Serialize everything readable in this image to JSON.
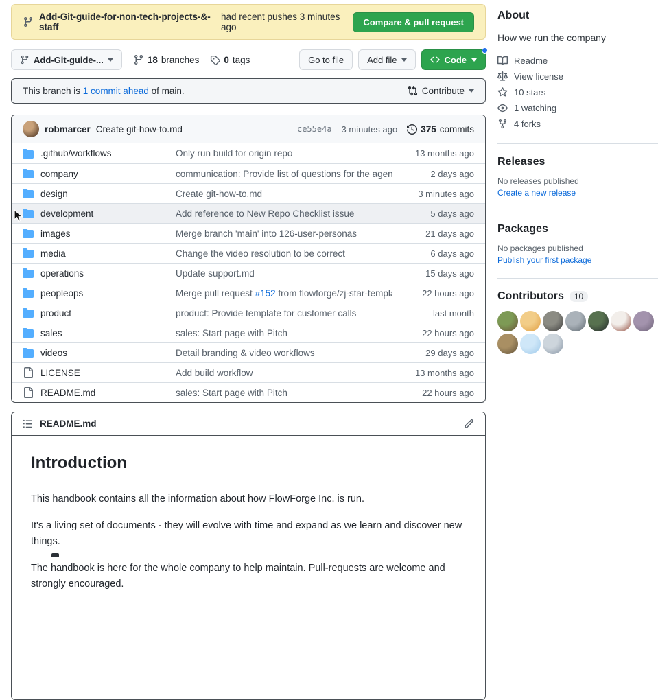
{
  "colors": {
    "accent_green": "#2da44e",
    "link_blue": "#0969da",
    "folder_blue": "#54aeff",
    "flash_yellow": "#faf0bd",
    "muted_text": "#57606a"
  },
  "banner": {
    "branch": "Add-Git-guide-for-non-tech-projects-&-staff",
    "message": "had recent pushes 3 minutes ago",
    "button_label": "Compare & pull request"
  },
  "nav": {
    "branch_selector_label": "Add-Git-guide-...",
    "branches_count": "18",
    "branches_label": "branches",
    "tags_count": "0",
    "tags_label": "tags",
    "go_to_file_label": "Go to file",
    "add_file_label": "Add file",
    "code_label": "Code"
  },
  "branch_status": {
    "prefix": "This branch is ",
    "link": "1 commit ahead",
    "suffix": " of main.",
    "contribute_label": "Contribute"
  },
  "commit_header": {
    "author": "robmarcer",
    "message": "Create git-how-to.md",
    "sha": "ce55e4a",
    "time": "3 minutes ago",
    "commits_count": "375",
    "commits_label": "commits"
  },
  "files": [
    {
      "type": "folder",
      "name": ".github/workflows",
      "msg_pre": "Only run build for origin repo",
      "msg_link": "",
      "msg_post": "",
      "date": "13 months ago",
      "highlight": false
    },
    {
      "type": "folder",
      "name": "company",
      "msg_pre": "communication: Provide list of questions for the agenda",
      "msg_link": "",
      "msg_post": "",
      "date": "2 days ago",
      "highlight": false
    },
    {
      "type": "folder",
      "name": "design",
      "msg_pre": "Create git-how-to.md",
      "msg_link": "",
      "msg_post": "",
      "date": "3 minutes ago",
      "highlight": false
    },
    {
      "type": "folder",
      "name": "development",
      "msg_pre": "Add reference to New Repo Checklist issue",
      "msg_link": "",
      "msg_post": "",
      "date": "5 days ago",
      "highlight": true
    },
    {
      "type": "folder",
      "name": "images",
      "msg_pre": "Merge branch 'main' into 126-user-personas",
      "msg_link": "",
      "msg_post": "",
      "date": "21 days ago",
      "highlight": false
    },
    {
      "type": "folder",
      "name": "media",
      "msg_pre": "Change the video resolution to be correct",
      "msg_link": "",
      "msg_post": "",
      "date": "6 days ago",
      "highlight": false
    },
    {
      "type": "folder",
      "name": "operations",
      "msg_pre": "Update support.md",
      "msg_link": "",
      "msg_post": "",
      "date": "15 days ago",
      "highlight": false
    },
    {
      "type": "folder",
      "name": "peopleops",
      "msg_pre": "Merge pull request ",
      "msg_link": "#152",
      "msg_post": " from flowforge/zj-star-template-questions",
      "date": "22 hours ago",
      "highlight": false
    },
    {
      "type": "folder",
      "name": "product",
      "msg_pre": "product: Provide template for customer calls",
      "msg_link": "",
      "msg_post": "",
      "date": "last month",
      "highlight": false
    },
    {
      "type": "folder",
      "name": "sales",
      "msg_pre": "sales: Start page with Pitch",
      "msg_link": "",
      "msg_post": "",
      "date": "22 hours ago",
      "highlight": false
    },
    {
      "type": "folder",
      "name": "videos",
      "msg_pre": "Detail branding & video workflows",
      "msg_link": "",
      "msg_post": "",
      "date": "29 days ago",
      "highlight": false
    },
    {
      "type": "file",
      "name": "LICENSE",
      "msg_pre": "Add build workflow",
      "msg_link": "",
      "msg_post": "",
      "date": "13 months ago",
      "highlight": false
    },
    {
      "type": "file",
      "name": "README.md",
      "msg_pre": "sales: Start page with Pitch",
      "msg_link": "",
      "msg_post": "",
      "date": "22 hours ago",
      "highlight": false
    }
  ],
  "readme": {
    "title": "README.md",
    "heading": "Introduction",
    "paragraphs": [
      "This handbook contains all the information about how FlowForge Inc. is run.",
      "It's a living set of documents - they will evolve with time and expand as we learn and discover new things.",
      "The handbook is here for the whole company to help maintain. Pull-requests are welcome and strongly encouraged."
    ]
  },
  "sidebar": {
    "about": {
      "heading": "About",
      "description": "How we run the company",
      "items": [
        {
          "icon": "book-icon",
          "label": "Readme"
        },
        {
          "icon": "law-icon",
          "label": "View license"
        },
        {
          "icon": "star-icon",
          "label": "10 stars"
        },
        {
          "icon": "eye-icon",
          "label": "1 watching"
        },
        {
          "icon": "fork-icon",
          "label": "4 forks"
        }
      ]
    },
    "releases": {
      "heading": "Releases",
      "empty_text": "No releases published",
      "link": "Create a new release"
    },
    "packages": {
      "heading": "Packages",
      "empty_text": "No packages published",
      "link": "Publish your first package"
    },
    "contributors": {
      "heading": "Contributors",
      "count": "10",
      "avatars": [
        {
          "colors": [
            "#7d9a55",
            "#6a5138"
          ]
        },
        {
          "colors": [
            "#f2cd88",
            "#df9c3f"
          ]
        },
        {
          "colors": [
            "#8b8b83",
            "#3c3c3c"
          ]
        },
        {
          "colors": [
            "#aab2b9",
            "#5d676f"
          ]
        },
        {
          "colors": [
            "#57714f",
            "#23262a"
          ]
        },
        {
          "colors": [
            "#f2eeea",
            "#8e4637"
          ]
        },
        {
          "colors": [
            "#a393ad",
            "#6d6177"
          ]
        },
        {
          "colors": [
            "#a98f63",
            "#5f5038"
          ]
        },
        {
          "colors": [
            "#cfe7f8",
            "#9ec9ea"
          ]
        },
        {
          "colors": [
            "#cdd5dc",
            "#8694a4"
          ]
        }
      ]
    }
  }
}
